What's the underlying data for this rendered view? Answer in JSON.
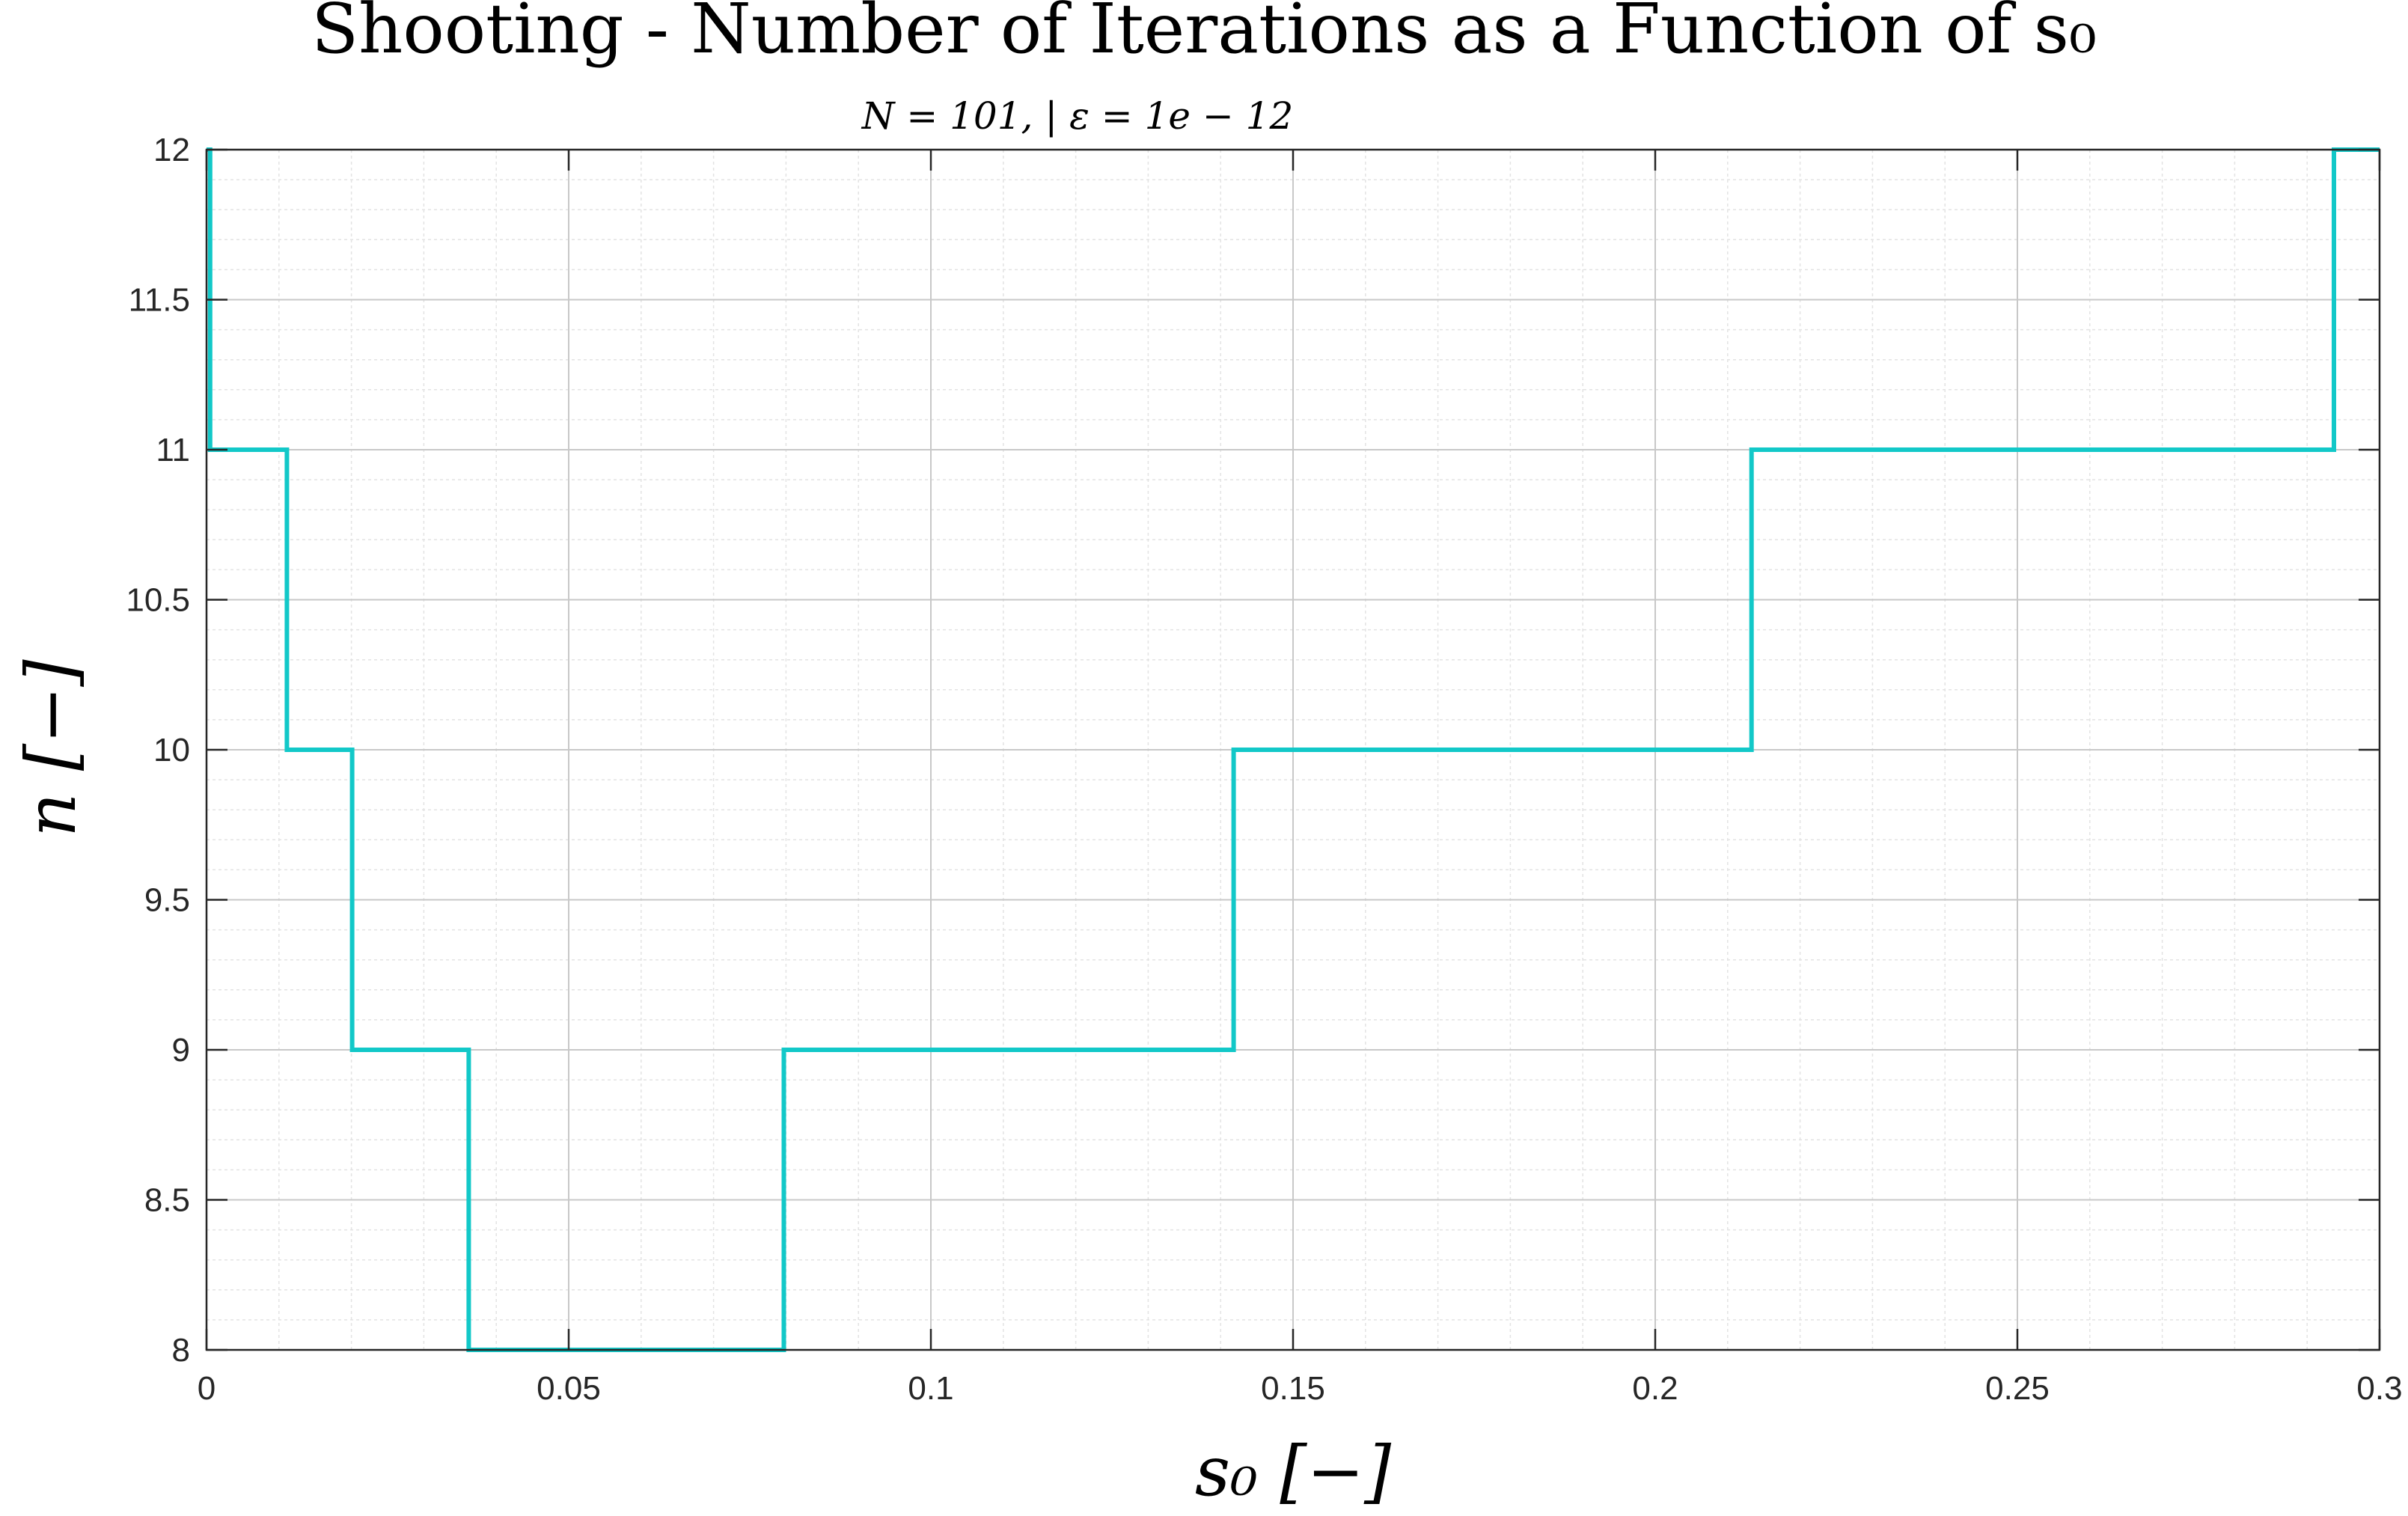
{
  "chart_data": {
    "type": "line",
    "step": "stairs",
    "title": "Shooting - Number of Iterations as a Function of s₀",
    "subtitle": "N = 101, | ε = 1e − 12",
    "xlabel": "s₀ [−]",
    "ylabel": "n [−]",
    "xlim": [
      0,
      0.3
    ],
    "ylim": [
      8,
      12
    ],
    "xticks": [
      0,
      0.05,
      0.1,
      0.15,
      0.2,
      0.25,
      0.3
    ],
    "xtick_labels": [
      "0",
      "0.05",
      "0.1",
      "0.15",
      "0.2",
      "0.25",
      "0.3"
    ],
    "yticks": [
      8,
      8.5,
      9,
      9.5,
      10,
      10.5,
      11,
      11.5,
      12
    ],
    "ytick_labels": [
      "8",
      "8.5",
      "9",
      "9.5",
      "10",
      "10.5",
      "11",
      "11.5",
      "12"
    ],
    "grid": true,
    "minor_grid": true,
    "line_color": "#12c8c8",
    "series": [
      {
        "x": [
          0,
          0.0005,
          0.0005,
          0.0111,
          0.0111,
          0.0201,
          0.0201,
          0.0362,
          0.0362,
          0.0797,
          0.0797,
          0.1418,
          0.1418,
          0.2133,
          0.2133,
          0.2937,
          0.2937,
          0.3
        ],
        "y": [
          12,
          12,
          11,
          11,
          10,
          10,
          9,
          9,
          8,
          8,
          9,
          9,
          10,
          10,
          11,
          11,
          12,
          12
        ]
      }
    ]
  }
}
